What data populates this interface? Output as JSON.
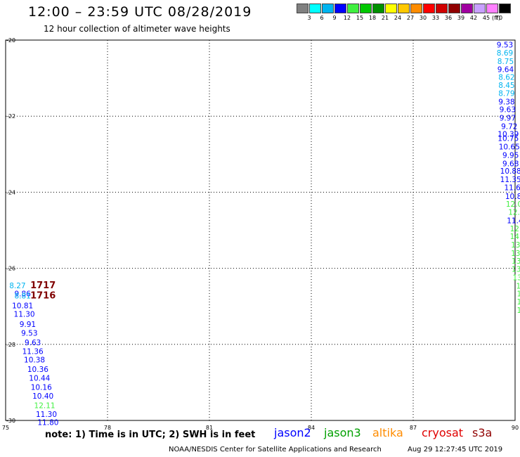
{
  "header": {
    "title": "12:00 – 23:59 UTC 08/28/2019",
    "subtitle": "12 hour collection of altimeter wave heights"
  },
  "color_scale": {
    "labels": [
      "3",
      "6",
      "9",
      "12",
      "15",
      "18",
      "21",
      "24",
      "27",
      "30",
      "33",
      "36",
      "39",
      "42",
      "45",
      "70"
    ],
    "unit": "(ft)",
    "colors": [
      "#808080",
      "#00ffff",
      "#00b4f0",
      "#0000ff",
      "#40f040",
      "#00c800",
      "#009000",
      "#ffff00",
      "#ffc800",
      "#ff8c00",
      "#ff0000",
      "#d00000",
      "#900000",
      "#a000a0",
      "#c8a0ff",
      "#ff80ff",
      "#000000"
    ]
  },
  "map": {
    "x_ticks": [
      "75",
      "78",
      "81",
      "84",
      "87",
      "90"
    ],
    "y_ticks": [
      "-20",
      "-22",
      "-24",
      "-26",
      "-28",
      "-30"
    ],
    "lon_range": [
      75,
      90
    ],
    "lat_range": [
      -30,
      -20
    ]
  },
  "tracks": [
    {
      "label_bind": "left",
      "points": [
        {
          "lon": 75.35,
          "lat": -26.45,
          "v": "8.27",
          "c": "#00b4f0"
        },
        {
          "lon": 75.5,
          "lat": -26.66,
          "v": "9.86",
          "c": "#0000ff"
        },
        {
          "lon": 75.5,
          "lat": -26.72,
          "v": "8.81",
          "c": "#00b4f0"
        },
        {
          "lon": 75.5,
          "lat": -26.98,
          "v": "10.81",
          "c": "#0000ff"
        },
        {
          "lon": 75.55,
          "lat": -27.2,
          "v": "11.30",
          "c": "#0000ff"
        },
        {
          "lon": 75.65,
          "lat": -27.47,
          "v": "9.91",
          "c": "#0000ff"
        },
        {
          "lon": 75.7,
          "lat": -27.7,
          "v": "9.53",
          "c": "#0000ff"
        },
        {
          "lon": 75.8,
          "lat": -27.95,
          "v": "9.63",
          "c": "#0000ff"
        },
        {
          "lon": 75.8,
          "lat": -28.18,
          "v": "11.36",
          "c": "#0000ff"
        },
        {
          "lon": 75.85,
          "lat": -28.4,
          "v": "10.38",
          "c": "#0000ff"
        },
        {
          "lon": 75.95,
          "lat": -28.65,
          "v": "10.36",
          "c": "#0000ff"
        },
        {
          "lon": 76.0,
          "lat": -28.88,
          "v": "10.44",
          "c": "#0000ff"
        },
        {
          "lon": 76.05,
          "lat": -29.12,
          "v": "10.16",
          "c": "#0000ff"
        },
        {
          "lon": 76.1,
          "lat": -29.35,
          "v": "10.40",
          "c": "#0000ff"
        },
        {
          "lon": 76.15,
          "lat": -29.6,
          "v": "12.11",
          "c": "#40f040"
        },
        {
          "lon": 76.2,
          "lat": -29.83,
          "v": "11.30",
          "c": "#0000ff"
        },
        {
          "lon": 76.25,
          "lat": -30.05,
          "v": "11.80",
          "c": "#0000ff"
        }
      ]
    },
    {
      "label_bind": "right",
      "points": [
        {
          "lon": 89.7,
          "lat": -20.12,
          "v": "9.53",
          "c": "#0000ff"
        },
        {
          "lon": 89.7,
          "lat": -20.33,
          "v": "8.69",
          "c": "#00b4f0"
        },
        {
          "lon": 89.72,
          "lat": -20.55,
          "v": "8.75",
          "c": "#00b4f0"
        },
        {
          "lon": 89.72,
          "lat": -20.77,
          "v": "9.64",
          "c": "#0000ff"
        },
        {
          "lon": 89.75,
          "lat": -20.97,
          "v": "8.62",
          "c": "#00b4f0"
        },
        {
          "lon": 89.75,
          "lat": -21.18,
          "v": "8.45",
          "c": "#00b4f0"
        },
        {
          "lon": 89.75,
          "lat": -21.4,
          "v": "8.79",
          "c": "#00b4f0"
        },
        {
          "lon": 89.75,
          "lat": -21.62,
          "v": "9.38",
          "c": "#0000ff"
        },
        {
          "lon": 89.78,
          "lat": -21.82,
          "v": "9.63",
          "c": "#0000ff"
        },
        {
          "lon": 89.78,
          "lat": -22.04,
          "v": "9.97",
          "c": "#0000ff"
        },
        {
          "lon": 89.83,
          "lat": -22.26,
          "v": "9.72",
          "c": "#0000ff"
        },
        {
          "lon": 89.8,
          "lat": -22.47,
          "v": "10.39",
          "c": "#0000ff"
        },
        {
          "lon": 89.8,
          "lat": -22.58,
          "v": "10.75",
          "c": "#0000ff"
        },
        {
          "lon": 89.83,
          "lat": -22.8,
          "v": "10.65",
          "c": "#0000ff"
        },
        {
          "lon": 89.87,
          "lat": -23.02,
          "v": "9.95",
          "c": "#0000ff"
        },
        {
          "lon": 89.87,
          "lat": -23.24,
          "v": "9.68",
          "c": "#0000ff"
        },
        {
          "lon": 89.87,
          "lat": -23.44,
          "v": "10.88",
          "c": "#0000ff"
        },
        {
          "lon": 89.87,
          "lat": -23.66,
          "v": "11.35",
          "c": "#0000ff"
        },
        {
          "lon": 89.92,
          "lat": -23.87,
          "v": "11.6",
          "c": "#0000ff"
        },
        {
          "lon": 89.95,
          "lat": -24.1,
          "v": "10.8",
          "c": "#0000ff"
        },
        {
          "lon": 89.97,
          "lat": -24.31,
          "v": "12.0",
          "c": "#40f040"
        },
        {
          "lon": 89.97,
          "lat": -24.52,
          "v": "12.",
          "c": "#40f040"
        },
        {
          "lon": 90.0,
          "lat": -24.74,
          "v": "11.4",
          "c": "#0000ff"
        },
        {
          "lon": 90.02,
          "lat": -24.95,
          "v": "12.",
          "c": "#40f040"
        },
        {
          "lon": 90.02,
          "lat": -25.16,
          "v": "14.",
          "c": "#40f040"
        },
        {
          "lon": 90.05,
          "lat": -25.38,
          "v": "13.",
          "c": "#40f040"
        },
        {
          "lon": 90.05,
          "lat": -25.6,
          "v": "13.",
          "c": "#40f040"
        },
        {
          "lon": 90.07,
          "lat": -25.8,
          "v": "13.",
          "c": "#40f040"
        },
        {
          "lon": 90.07,
          "lat": -26.02,
          "v": "13.",
          "c": "#40f040"
        },
        {
          "lon": 90.1,
          "lat": -26.24,
          "v": "13.",
          "c": "#40f040"
        },
        {
          "lon": 90.1,
          "lat": -26.46,
          "v": "1",
          "c": "#40f040"
        },
        {
          "lon": 90.12,
          "lat": -26.66,
          "v": "1",
          "c": "#40f040"
        },
        {
          "lon": 90.12,
          "lat": -26.88,
          "v": "1",
          "c": "#40f040"
        },
        {
          "lon": 90.12,
          "lat": -27.1,
          "v": "1",
          "c": "#40f040"
        }
      ]
    }
  ],
  "times": [
    {
      "lon": 76.1,
      "lat": -26.43,
      "v": "1717"
    },
    {
      "lon": 76.1,
      "lat": -26.7,
      "v": "1716"
    }
  ],
  "footer": {
    "note": "note:  1) Time is in UTC;  2) SWH is in feet",
    "satellites": [
      {
        "name": "jason2",
        "color": "#0000ff"
      },
      {
        "name": "jason3",
        "color": "#00a000"
      },
      {
        "name": "altika",
        "color": "#ff8c00"
      },
      {
        "name": "cryosat",
        "color": "#e00000"
      },
      {
        "name": "s3a",
        "color": "#900000"
      }
    ],
    "credit": "NOAA/NESDIS Center for Satellite Applications and Research",
    "timestamp": "Aug 29 12:27:45 UTC 2019"
  }
}
